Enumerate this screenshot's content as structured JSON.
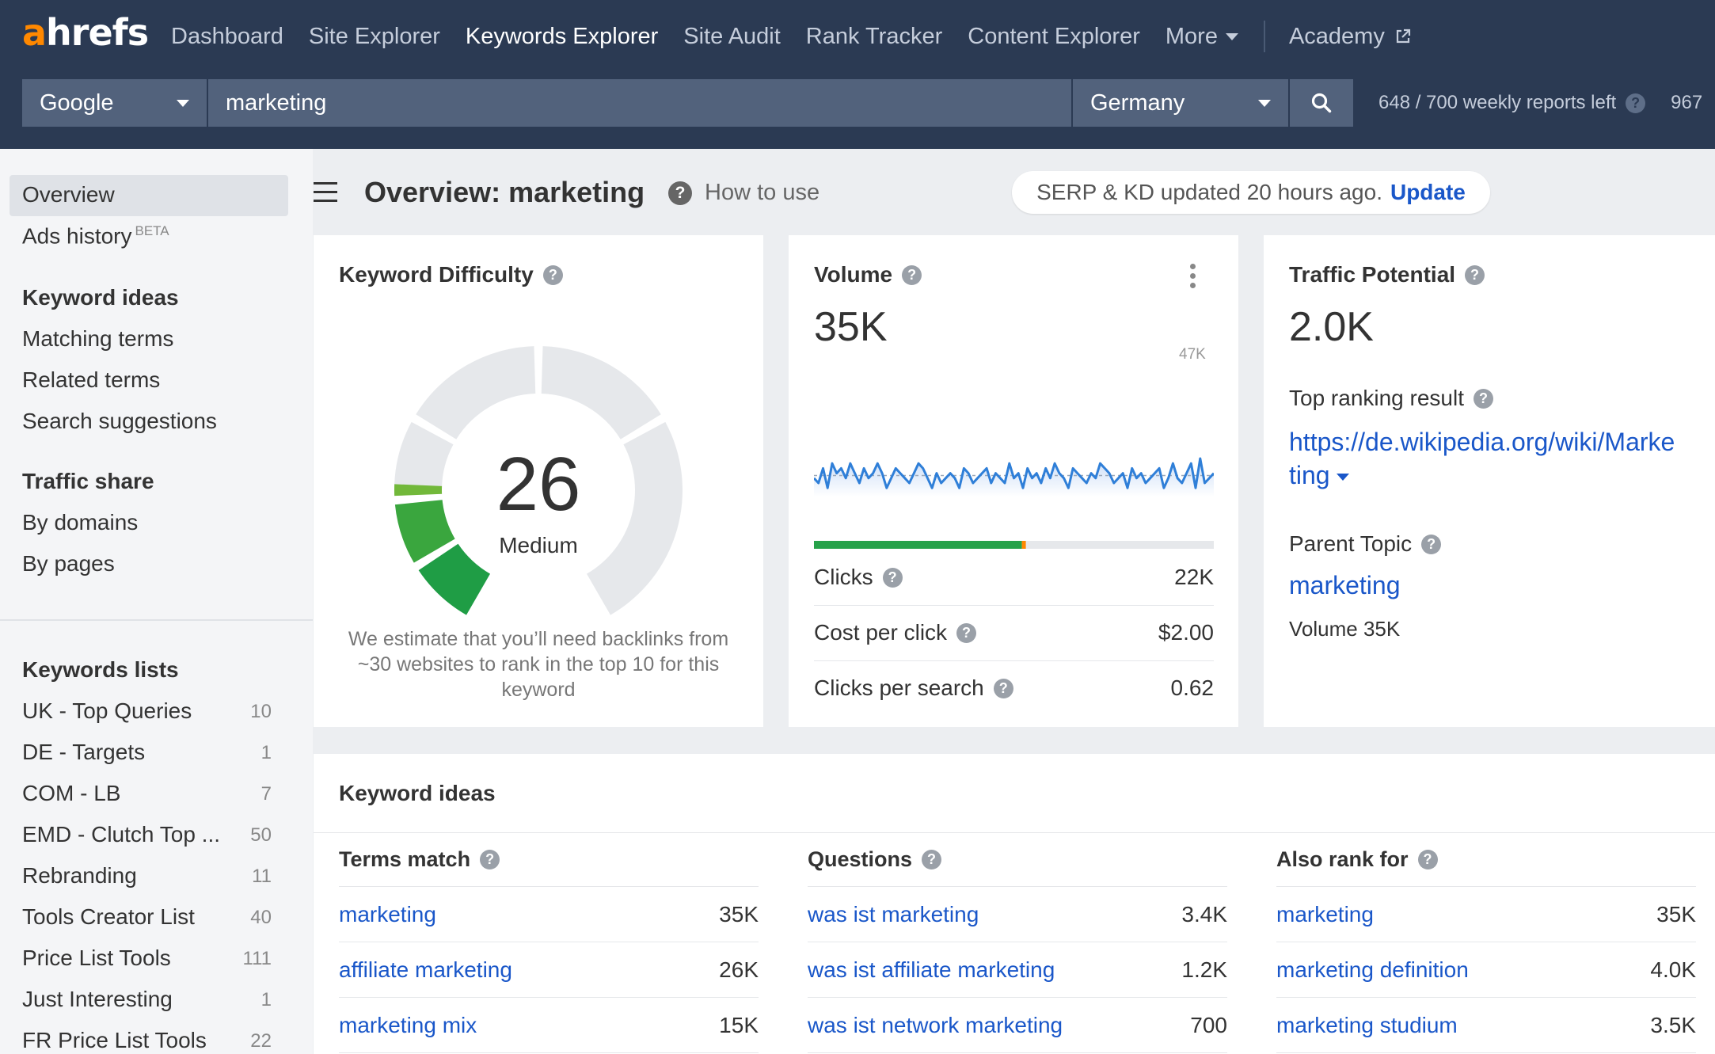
{
  "brand": {
    "logo_a": "a",
    "logo_rest": "hrefs"
  },
  "nav": {
    "items": [
      "Dashboard",
      "Site Explorer",
      "Keywords Explorer",
      "Site Audit",
      "Rank Tracker",
      "Content Explorer"
    ],
    "more": "More",
    "academy": "Academy",
    "active": "Keywords Explorer"
  },
  "search": {
    "engine": "Google",
    "keyword": "marketing",
    "country": "Germany",
    "reports_left": "648 / 700 weekly reports left",
    "extra": "967"
  },
  "sidebar": {
    "overview": "Overview",
    "ads_history": "Ads history",
    "beta": "BETA",
    "keyword_ideas": {
      "heading": "Keyword ideas",
      "items": [
        "Matching terms",
        "Related terms",
        "Search suggestions"
      ]
    },
    "traffic_share": {
      "heading": "Traffic share",
      "items": [
        "By domains",
        "By pages"
      ]
    },
    "lists": {
      "heading": "Keywords lists",
      "items": [
        {
          "name": "UK - Top Queries",
          "count": "10"
        },
        {
          "name": "DE - Targets",
          "count": "1"
        },
        {
          "name": "COM - LB",
          "count": "7"
        },
        {
          "name": "EMD - Clutch Top ...",
          "count": "50"
        },
        {
          "name": "Rebranding",
          "count": "11"
        },
        {
          "name": "Tools Creator List",
          "count": "40"
        },
        {
          "name": "Price List Tools",
          "count": "111"
        },
        {
          "name": "Just Interesting",
          "count": "1"
        },
        {
          "name": "FR Price List Tools",
          "count": "22"
        }
      ]
    }
  },
  "header": {
    "title": "Overview: marketing",
    "how_to_use": "How to use",
    "updated_text": "SERP & KD updated 20 hours ago.",
    "update_link": "Update"
  },
  "kd": {
    "title": "Keyword Difficulty",
    "value": "26",
    "score": 26,
    "label": "Medium",
    "description": "We estimate that you’ll need backlinks from ~30 websites to rank in the top 10 for this keyword"
  },
  "volume": {
    "title": "Volume",
    "value": "35K",
    "max_label": "47K",
    "clicks_share": 0.52,
    "metrics": [
      {
        "label": "Clicks",
        "value": "22K"
      },
      {
        "label": "Cost per click",
        "value": "$2.00"
      },
      {
        "label": "Clicks per search",
        "value": "0.62"
      }
    ]
  },
  "traffic": {
    "title": "Traffic Potential",
    "value": "2.0K",
    "top_ranking_label": "Top ranking result",
    "top_ranking_url_1": "https://de.wikipedia.org/wiki/Marke",
    "top_ranking_url_2": "ting",
    "parent_topic_label": "Parent Topic",
    "parent_topic": "marketing",
    "parent_volume": "Volume 35K"
  },
  "keyword_ideas": {
    "title": "Keyword ideas",
    "columns": [
      {
        "heading": "Terms match",
        "rows": [
          {
            "term": "marketing",
            "value": "35K"
          },
          {
            "term": "affiliate marketing",
            "value": "26K"
          },
          {
            "term": "marketing mix",
            "value": "15K"
          }
        ]
      },
      {
        "heading": "Questions",
        "rows": [
          {
            "term": "was ist marketing",
            "value": "3.4K"
          },
          {
            "term": "was ist affiliate marketing",
            "value": "1.2K"
          },
          {
            "term": "was ist network marketing",
            "value": "700"
          }
        ]
      },
      {
        "heading": "Also rank for",
        "rows": [
          {
            "term": "marketing",
            "value": "35K"
          },
          {
            "term": "marketing definition",
            "value": "4.0K"
          },
          {
            "term": "marketing studium",
            "value": "3.5K"
          }
        ]
      }
    ]
  },
  "colors": {
    "topbar": "#2b3a53",
    "accent_orange": "#ff8800",
    "link_blue": "#1a57c9",
    "kd_green": "#1f9d45",
    "clicks_green": "#27a24a",
    "chart_blue": "#2f7fd8"
  }
}
